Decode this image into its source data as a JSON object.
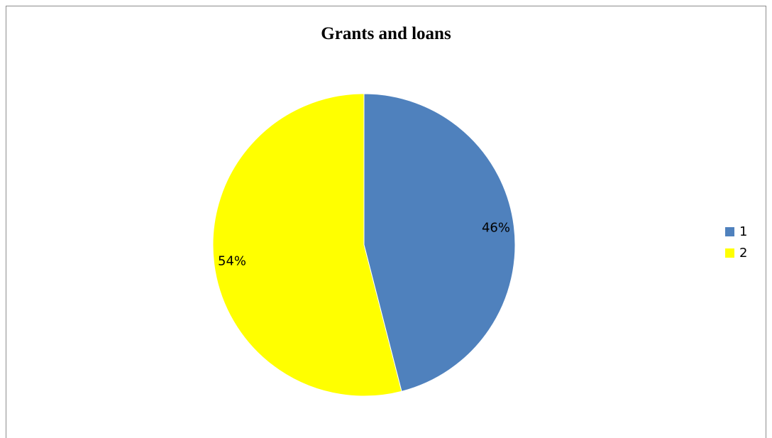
{
  "chart_data": {
    "type": "pie",
    "title": "Grants and loans",
    "slices": [
      {
        "label": "1",
        "value": 46,
        "display": "46%",
        "color": "#4f81bd"
      },
      {
        "label": "2",
        "value": 54,
        "display": "54%",
        "color": "#ffff00"
      }
    ],
    "legend_position": "right"
  }
}
